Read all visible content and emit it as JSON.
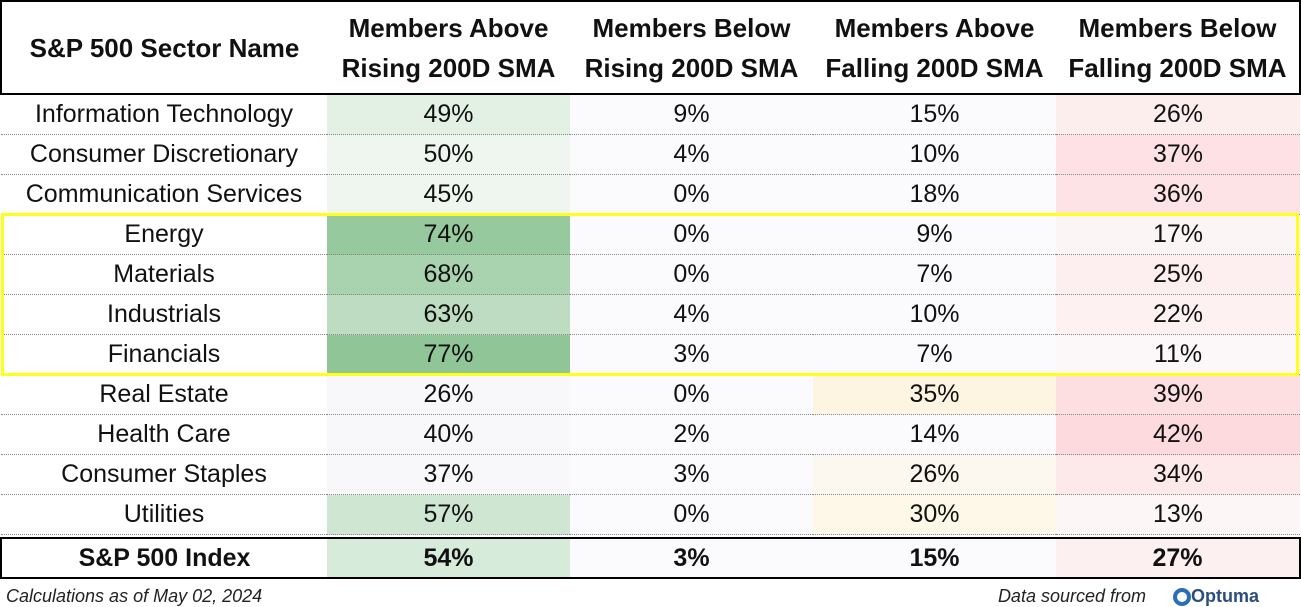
{
  "table": {
    "header": [
      "S&P 500 Sector Name",
      "Members Above\nRising 200D SMA",
      "Members Below\nRising 200D SMA",
      "Members Above\nFalling 200D SMA",
      "Members Below\nFalling 200D SMA"
    ],
    "rows": [
      [
        "Information Technology",
        "49%",
        "9%",
        "15%",
        "26%"
      ],
      [
        "Consumer Discretionary",
        "50%",
        "4%",
        "10%",
        "37%"
      ],
      [
        "Communication Services",
        "45%",
        "0%",
        "18%",
        "36%"
      ],
      [
        "Energy",
        "74%",
        "0%",
        "9%",
        "17%"
      ],
      [
        "Materials",
        "68%",
        "0%",
        "7%",
        "25%"
      ],
      [
        "Industrials",
        "63%",
        "4%",
        "10%",
        "22%"
      ],
      [
        "Financials",
        "77%",
        "3%",
        "7%",
        "11%"
      ],
      [
        "Real Estate",
        "26%",
        "0%",
        "35%",
        "39%"
      ],
      [
        "Health Care",
        "40%",
        "2%",
        "14%",
        "42%"
      ],
      [
        "Consumer Staples",
        "37%",
        "3%",
        "26%",
        "34%"
      ],
      [
        "Utilities",
        "57%",
        "0%",
        "30%",
        "13%"
      ]
    ],
    "total": [
      "S&P 500 Index",
      "54%",
      "3%",
      "15%",
      "27%"
    ],
    "cell_colors": [
      [
        "#ffffff",
        "#e3f1e5",
        "#fbfbfd",
        "#fbfbfd",
        "#fdeeee"
      ],
      [
        "#ffffff",
        "#eef6ef",
        "#fbfbfd",
        "#fbfbfd",
        "#fde1e4"
      ],
      [
        "#ffffff",
        "#eef6ef",
        "#fbfbfd",
        "#fbfbfd",
        "#fde3e5"
      ],
      [
        "#ffffff",
        "#97c99f",
        "#fbfbfd",
        "#fbfbfd",
        "#fcf5f6"
      ],
      [
        "#ffffff",
        "#a9d3af",
        "#fbfbfd",
        "#fbfbfd",
        "#fdeff0"
      ],
      [
        "#ffffff",
        "#bddcc1",
        "#fbfbfd",
        "#fbfbfd",
        "#fdf1f2"
      ],
      [
        "#ffffff",
        "#8fc597",
        "#fbfbfd",
        "#fbfbfd",
        "#fcf8f9"
      ],
      [
        "#ffffff",
        "#f8f8fb",
        "#fbfbfd",
        "#fdf5e1",
        "#fddfe2"
      ],
      [
        "#ffffff",
        "#f8f8fb",
        "#fbfbfd",
        "#fbfbfd",
        "#fddadd"
      ],
      [
        "#ffffff",
        "#f8f8fb",
        "#fbfbfd",
        "#fcf8f0",
        "#fde8ea"
      ],
      [
        "#ffffff",
        "#cfe6d3",
        "#fbfbfd",
        "#fdf8e8",
        "#fcf6f7"
      ]
    ],
    "total_colors": [
      "#ffffff",
      "#d7ebda",
      "#fbfbfd",
      "#fbfbfd",
      "#fdf0f1"
    ]
  },
  "footer": {
    "note": "Calculations as of May 02, 2024",
    "source": "Data sourced from",
    "logo": "Optuma"
  }
}
